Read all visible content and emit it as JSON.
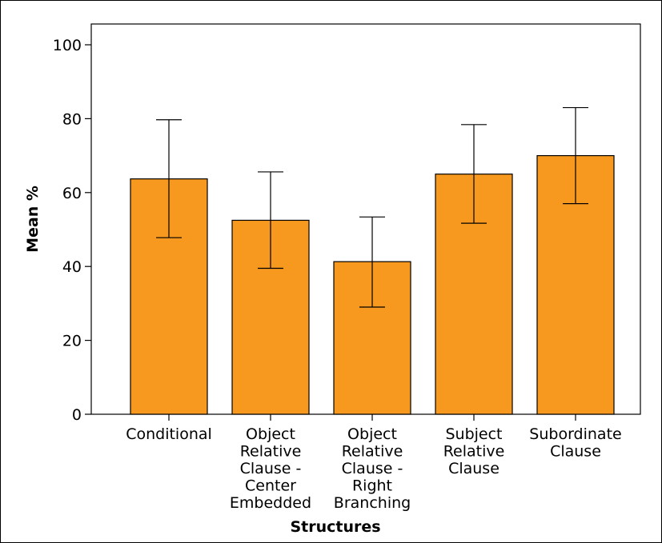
{
  "chart_data": {
    "type": "bar",
    "title": "",
    "xlabel": "Structures",
    "ylabel": "Mean %",
    "ylim": [
      0,
      100
    ],
    "yticks": [
      0,
      20,
      40,
      60,
      80,
      100
    ],
    "grid": false,
    "bar_color": "#f7981f",
    "categories": [
      [
        "Conditional"
      ],
      [
        "Object",
        "Relative",
        "Clause -",
        "Center",
        "Embedded"
      ],
      [
        "Object",
        "Relative",
        "Clause -",
        "Right",
        "Branching"
      ],
      [
        "Subject",
        "Relative",
        "Clause"
      ],
      [
        "Subordinate",
        "Clause"
      ]
    ],
    "values": [
      63.7,
      52.5,
      41.3,
      65.0,
      70.0
    ],
    "error_low": [
      47.8,
      39.5,
      29.0,
      51.7,
      57.0
    ],
    "error_high": [
      79.7,
      65.6,
      53.4,
      78.4,
      83.0
    ]
  }
}
